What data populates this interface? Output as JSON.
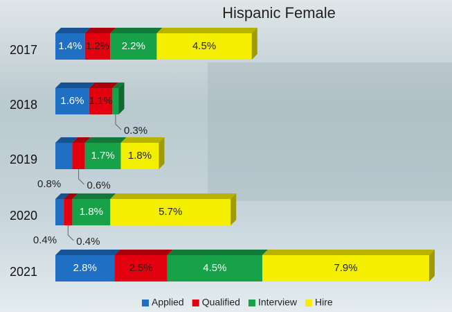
{
  "chart_data": {
    "type": "bar",
    "orientation": "horizontal",
    "stacked": true,
    "title": "Hispanic  Female",
    "categories": [
      "2017",
      "2018",
      "2019",
      "2020",
      "2021"
    ],
    "series": [
      {
        "name": "Applied",
        "color": "#1f6fc5",
        "values": [
          1.4,
          1.6,
          0.8,
          0.4,
          2.8
        ],
        "value_labels": [
          "1.4%",
          "1.6%",
          "0.8%",
          "0.4%",
          "2.8%"
        ]
      },
      {
        "name": "Qualified",
        "color": "#e3000f",
        "values": [
          1.2,
          1.1,
          0.6,
          0.4,
          2.5
        ],
        "value_labels": [
          "1.2%",
          "1.1%",
          "0.6%",
          "0.4%",
          "2.5%"
        ]
      },
      {
        "name": "Interview",
        "color": "#17a24a",
        "values": [
          2.2,
          0.3,
          1.7,
          1.8,
          4.5
        ],
        "value_labels": [
          "2.2%",
          "0.3%",
          "1.7%",
          "1.8%",
          "4.5%"
        ]
      },
      {
        "name": "Hire",
        "color": "#f4ee00",
        "values": [
          4.5,
          null,
          1.8,
          5.7,
          7.9
        ],
        "value_labels": [
          "4.5%",
          null,
          "1.8%",
          "5.7%",
          "7.9%"
        ]
      }
    ]
  }
}
